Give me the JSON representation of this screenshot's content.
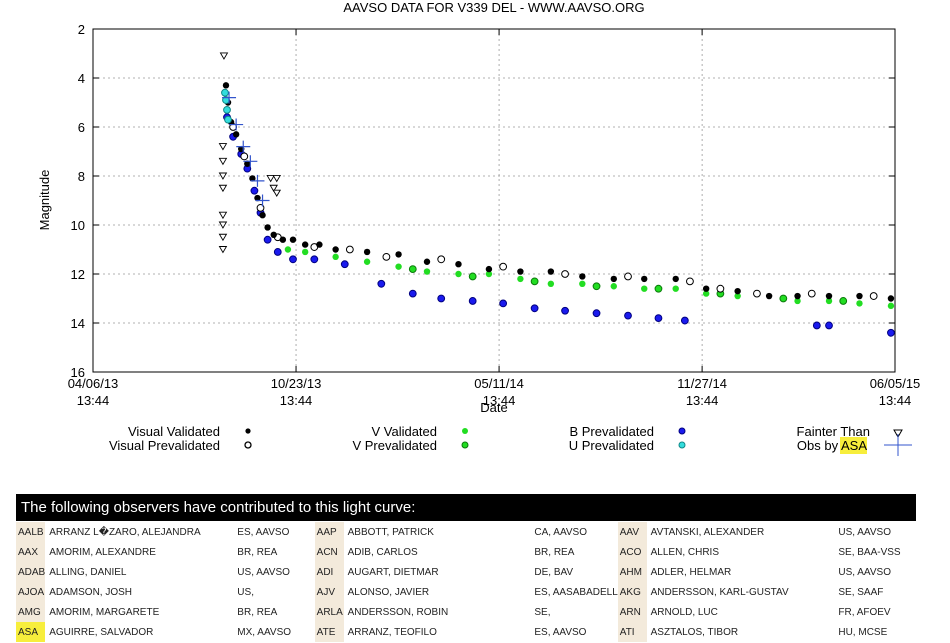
{
  "chart_data": {
    "type": "scatter",
    "title": "AAVSO DATA FOR V339 DEL - WWW.AAVSO.ORG",
    "xlabel": "Date",
    "ylabel": "Magnitude",
    "x_axis_type": "date",
    "xlim": [
      "2013-04-06",
      "2015-06-05"
    ],
    "ylim": [
      2,
      16
    ],
    "y_inverted": true,
    "grid": true,
    "x_ticks": [
      {
        "date": "2013-04-06",
        "line1": "04/06/13",
        "line2": "13:44"
      },
      {
        "date": "2013-10-23",
        "line1": "10/23/13",
        "line2": "13:44"
      },
      {
        "date": "2014-05-11",
        "line1": "05/11/14",
        "line2": "13:44"
      },
      {
        "date": "2014-11-27",
        "line1": "11/27/14",
        "line2": "13:44"
      },
      {
        "date": "2015-06-05",
        "line1": "06/05/15",
        "line2": "13:44"
      }
    ],
    "y_ticks": [
      "2",
      "4",
      "6",
      "8",
      "10",
      "12",
      "14",
      "16"
    ],
    "series": [
      {
        "name": "Visual Validated",
        "color": "#000000",
        "marker": "dot",
        "points": [
          [
            "2013-08-15",
            4.3
          ],
          [
            "2013-08-17",
            5.0
          ],
          [
            "2013-08-20",
            5.8
          ],
          [
            "2013-08-25",
            6.3
          ],
          [
            "2013-08-30",
            6.9
          ],
          [
            "2013-09-05",
            7.5
          ],
          [
            "2013-09-10",
            8.1
          ],
          [
            "2013-09-15",
            8.9
          ],
          [
            "2013-09-20",
            9.6
          ],
          [
            "2013-09-25",
            10.1
          ],
          [
            "2013-10-01",
            10.4
          ],
          [
            "2013-10-10",
            10.6
          ],
          [
            "2013-10-20",
            10.6
          ],
          [
            "2013-11-01",
            10.8
          ],
          [
            "2013-11-15",
            10.8
          ],
          [
            "2013-12-01",
            11.0
          ],
          [
            "2014-01-01",
            11.1
          ],
          [
            "2014-02-01",
            11.2
          ],
          [
            "2014-03-01",
            11.5
          ],
          [
            "2014-04-01",
            11.6
          ],
          [
            "2014-05-01",
            11.8
          ],
          [
            "2014-06-01",
            11.9
          ],
          [
            "2014-07-01",
            11.9
          ],
          [
            "2014-08-01",
            12.1
          ],
          [
            "2014-09-01",
            12.2
          ],
          [
            "2014-10-01",
            12.2
          ],
          [
            "2014-11-01",
            12.2
          ],
          [
            "2014-12-01",
            12.6
          ],
          [
            "2015-01-01",
            12.7
          ],
          [
            "2015-02-01",
            12.9
          ],
          [
            "2015-03-01",
            12.9
          ],
          [
            "2015-04-01",
            12.9
          ],
          [
            "2015-05-01",
            12.9
          ],
          [
            "2015-06-01",
            13.0
          ]
        ]
      },
      {
        "name": "Visual Prevalidated",
        "color": "#000000",
        "marker": "hatched",
        "points": [
          [
            "2013-08-22",
            6.0
          ],
          [
            "2013-09-02",
            7.2
          ],
          [
            "2013-09-18",
            9.3
          ],
          [
            "2013-10-05",
            10.5
          ],
          [
            "2013-11-10",
            10.9
          ],
          [
            "2013-12-15",
            11.0
          ],
          [
            "2014-01-20",
            11.3
          ],
          [
            "2014-03-15",
            11.4
          ],
          [
            "2014-05-15",
            11.7
          ],
          [
            "2014-07-15",
            12.0
          ],
          [
            "2014-09-15",
            12.1
          ],
          [
            "2014-11-15",
            12.3
          ],
          [
            "2014-12-15",
            12.6
          ],
          [
            "2015-01-20",
            12.8
          ],
          [
            "2015-03-15",
            12.8
          ],
          [
            "2015-05-15",
            12.9
          ]
        ]
      },
      {
        "name": "V Validated",
        "color": "#22dd22",
        "marker": "dot",
        "points": [
          [
            "2013-10-15",
            11.0
          ],
          [
            "2013-11-01",
            11.1
          ],
          [
            "2013-12-01",
            11.3
          ],
          [
            "2014-01-01",
            11.5
          ],
          [
            "2014-02-01",
            11.7
          ],
          [
            "2014-03-01",
            11.9
          ],
          [
            "2014-04-01",
            12.0
          ],
          [
            "2014-05-01",
            12.0
          ],
          [
            "2014-06-01",
            12.2
          ],
          [
            "2014-07-01",
            12.4
          ],
          [
            "2014-08-01",
            12.4
          ],
          [
            "2014-09-01",
            12.5
          ],
          [
            "2014-10-01",
            12.6
          ],
          [
            "2014-11-01",
            12.6
          ],
          [
            "2014-12-01",
            12.8
          ],
          [
            "2015-01-01",
            12.9
          ],
          [
            "2015-03-01",
            13.1
          ],
          [
            "2015-04-01",
            13.1
          ],
          [
            "2015-05-01",
            13.2
          ],
          [
            "2015-06-01",
            13.3
          ]
        ]
      },
      {
        "name": "V Prevalidated",
        "color": "#22dd22",
        "marker": "hatched",
        "points": [
          [
            "2014-02-15",
            11.8
          ],
          [
            "2014-04-15",
            12.1
          ],
          [
            "2014-06-15",
            12.3
          ],
          [
            "2014-08-15",
            12.5
          ],
          [
            "2014-10-15",
            12.6
          ],
          [
            "2014-12-15",
            12.8
          ],
          [
            "2015-02-15",
            13.0
          ],
          [
            "2015-04-15",
            13.1
          ]
        ]
      },
      {
        "name": "B Prevalidated",
        "color": "#1a1aee",
        "marker": "hatched",
        "points": [
          [
            "2013-08-16",
            5.6
          ],
          [
            "2013-08-22",
            6.4
          ],
          [
            "2013-08-30",
            7.1
          ],
          [
            "2013-09-05",
            7.7
          ],
          [
            "2013-09-12",
            8.6
          ],
          [
            "2013-09-18",
            9.5
          ],
          [
            "2013-09-25",
            10.6
          ],
          [
            "2013-10-05",
            11.1
          ],
          [
            "2013-10-20",
            11.4
          ],
          [
            "2013-11-10",
            11.4
          ],
          [
            "2013-12-10",
            11.6
          ],
          [
            "2014-01-15",
            12.4
          ],
          [
            "2014-02-15",
            12.8
          ],
          [
            "2014-03-15",
            13.0
          ],
          [
            "2014-04-15",
            13.1
          ],
          [
            "2014-05-15",
            13.2
          ],
          [
            "2014-06-15",
            13.4
          ],
          [
            "2014-07-15",
            13.5
          ],
          [
            "2014-08-15",
            13.6
          ],
          [
            "2014-09-15",
            13.7
          ],
          [
            "2014-10-15",
            13.8
          ],
          [
            "2014-11-10",
            13.9
          ],
          [
            "2015-03-20",
            14.1
          ],
          [
            "2015-04-01",
            14.1
          ],
          [
            "2015-06-01",
            14.4
          ]
        ]
      },
      {
        "name": "U Prevalidated",
        "color": "#33dddd",
        "marker": "hatched",
        "points": [
          [
            "2013-08-14",
            4.6
          ],
          [
            "2013-08-15",
            4.9
          ],
          [
            "2013-08-16",
            5.3
          ],
          [
            "2013-08-17",
            5.7
          ]
        ]
      },
      {
        "name": "Fainter Than",
        "color": "#000000",
        "marker": "triangle-down",
        "points": [
          [
            "2013-08-13",
            3.1
          ],
          [
            "2013-08-12",
            6.8
          ],
          [
            "2013-08-12",
            7.4
          ],
          [
            "2013-08-12",
            8.0
          ],
          [
            "2013-08-12",
            8.5
          ],
          [
            "2013-08-12",
            9.6
          ],
          [
            "2013-08-12",
            10.0
          ],
          [
            "2013-08-12",
            10.5
          ],
          [
            "2013-08-12",
            11.0
          ],
          [
            "2013-09-28",
            8.1
          ],
          [
            "2013-10-01",
            8.5
          ],
          [
            "2013-10-04",
            8.1
          ],
          [
            "2013-10-04",
            8.7
          ]
        ]
      },
      {
        "name": "Obs by ASA",
        "color": "#3355cc",
        "marker": "cross",
        "points": [
          [
            "2013-08-18",
            4.8
          ],
          [
            "2013-08-25",
            5.9
          ],
          [
            "2013-09-01",
            6.8
          ],
          [
            "2013-09-08",
            7.4
          ],
          [
            "2013-09-15",
            8.2
          ],
          [
            "2013-09-20",
            9.0
          ]
        ]
      }
    ]
  },
  "legend": {
    "visual_validated": "Visual Validated",
    "visual_prevalidated": "Visual Prevalidated",
    "v_validated": "V Validated",
    "v_prevalidated": "V Prevalidated",
    "b_prevalidated": "B Prevalidated",
    "u_prevalidated": "U Prevalidated",
    "fainter_than": "Fainter Than",
    "obs_by_prefix": "Obs by ",
    "obs_by_code": "ASA"
  },
  "observers": {
    "header": "The following observers have contributed to this light curve:",
    "highlight_code": "ASA",
    "rows": [
      [
        [
          "AALB",
          "ARRANZ L�ZARO, ALEJANDRA",
          "ES, AAVSO"
        ],
        [
          "AAP",
          "ABBOTT, PATRICK",
          "CA, AAVSO"
        ],
        [
          "AAV",
          "AVTANSKI, ALEXANDER",
          "US, AAVSO"
        ]
      ],
      [
        [
          "AAX",
          "AMORIM, ALEXANDRE",
          "BR, REA"
        ],
        [
          "ACN",
          "ADIB, CARLOS",
          "BR, REA"
        ],
        [
          "ACO",
          "ALLEN, CHRIS",
          "SE, BAA-VSS"
        ]
      ],
      [
        [
          "ADAB",
          "ALLING, DANIEL",
          "US, AAVSO"
        ],
        [
          "ADI",
          "AUGART, DIETMAR",
          "DE, BAV"
        ],
        [
          "AHM",
          "ADLER, HELMAR",
          "US, AAVSO"
        ]
      ],
      [
        [
          "AJOA",
          "ADAMSON, JOSH",
          "US,"
        ],
        [
          "AJV",
          "ALONSO, JAVIER",
          "ES, AASABADELL"
        ],
        [
          "AKG",
          "ANDERSSON, KARL-GUSTAV",
          "SE, SAAF"
        ]
      ],
      [
        [
          "AMG",
          "AMORIM, MARGARETE",
          "BR, REA"
        ],
        [
          "ARLA",
          "ANDERSSON, ROBIN",
          "SE,"
        ],
        [
          "ARN",
          "ARNOLD, LUC",
          "FR, AFOEV"
        ]
      ],
      [
        [
          "ASA",
          "AGUIRRE, SALVADOR",
          "MX, AAVSO"
        ],
        [
          "ATE",
          "ARRANZ, TEOFILO",
          "ES, AAVSO"
        ],
        [
          "ATI",
          "ASZTALOS, TIBOR",
          "HU, MCSE"
        ]
      ]
    ]
  }
}
